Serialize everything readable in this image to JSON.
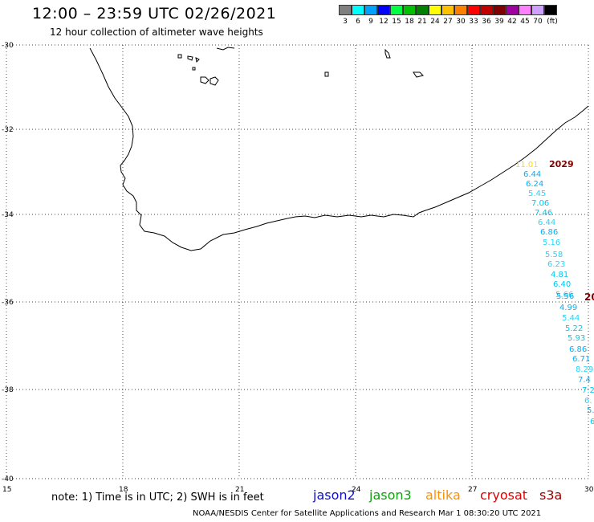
{
  "header": {
    "title": "12:00 – 23:59 UTC 02/26/2021",
    "subtitle": "12 hour collection of altimeter wave heights"
  },
  "color_scale": {
    "swatches": [
      "#808080",
      "#00ffff",
      "#00a0ff",
      "#0000ff",
      "#00ff40",
      "#00c000",
      "#008000",
      "#ffff00",
      "#ffc000",
      "#ff8000",
      "#ff0000",
      "#c00000",
      "#800000",
      "#a000a0",
      "#ff80ff",
      "#d0a0ff",
      "#000000"
    ],
    "labels": [
      "3",
      "6",
      "9",
      "12",
      "15",
      "18",
      "21",
      "24",
      "27",
      "30",
      "33",
      "36",
      "39",
      "42",
      "45",
      "70",
      "(ft)"
    ]
  },
  "axes": {
    "lat_labels": [
      "-30",
      "-32",
      "-34",
      "-36",
      "-38",
      "-40"
    ],
    "lon_labels": [
      "15",
      "18",
      "21",
      "24",
      "27",
      "30"
    ]
  },
  "tracks": {
    "track_time_top": "2029",
    "track_time_mid": "20",
    "yellow_reading": "11.01",
    "readings": [
      "6.44",
      "6.24",
      "5.45",
      "7.06",
      "7.46",
      "6.44",
      "6.86",
      "5.16",
      "5.58",
      "6.23",
      "4.81",
      "6.40",
      "5.66",
      "5.56",
      "4.99",
      "5.44",
      "5.22",
      "5.93",
      "6.86",
      "6.71",
      "8.29",
      "7.4",
      "7.2",
      "6.",
      "5.",
      "6"
    ]
  },
  "footer": {
    "note": "note: 1) Time is in UTC; 2) SWH is in feet",
    "satellites": [
      {
        "name": "jason2",
        "color": "#1010c0"
      },
      {
        "name": "jason3",
        "color": "#10a010"
      },
      {
        "name": "altika",
        "color": "#ff9000"
      },
      {
        "name": "cryosat",
        "color": "#e00000"
      },
      {
        "name": "s3a",
        "color": "#a00000"
      }
    ],
    "credit": "NOAA/NESDIS Center for Satellite Applications and Research   Mar  1 08:30:20 UTC 2021"
  }
}
